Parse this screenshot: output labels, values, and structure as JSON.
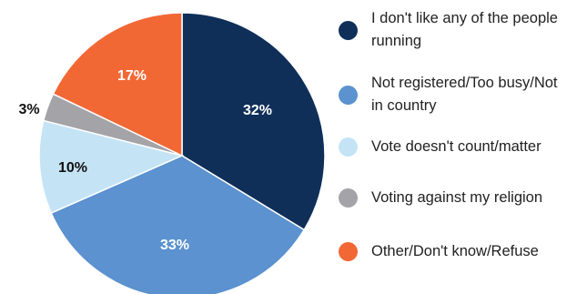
{
  "chart_data": {
    "type": "pie",
    "slices": [
      {
        "label": "I don't like any of the people running",
        "value": 32,
        "display": "32%",
        "color": "#0f2f59",
        "label_color": "#ffffff"
      },
      {
        "label": "Not registered/Too busy/Not in country",
        "value": 33,
        "display": "33%",
        "color": "#5b92cf",
        "label_color": "#ffffff"
      },
      {
        "label": "Vote doesn't count/matter",
        "value": 10,
        "display": "10%",
        "color": "#c4e4f6",
        "label_color": "#111111"
      },
      {
        "label": "Voting against my religion",
        "value": 3,
        "display": "3%",
        "color": "#a3a3a8",
        "label_color": "#111111"
      },
      {
        "label": "Other/Don't know/Refuse",
        "value": 17,
        "display": "17%",
        "color": "#f26835",
        "label_color": "#ffffff"
      }
    ],
    "start_direction": "top",
    "order": "clockwise",
    "legend_position": "right"
  }
}
